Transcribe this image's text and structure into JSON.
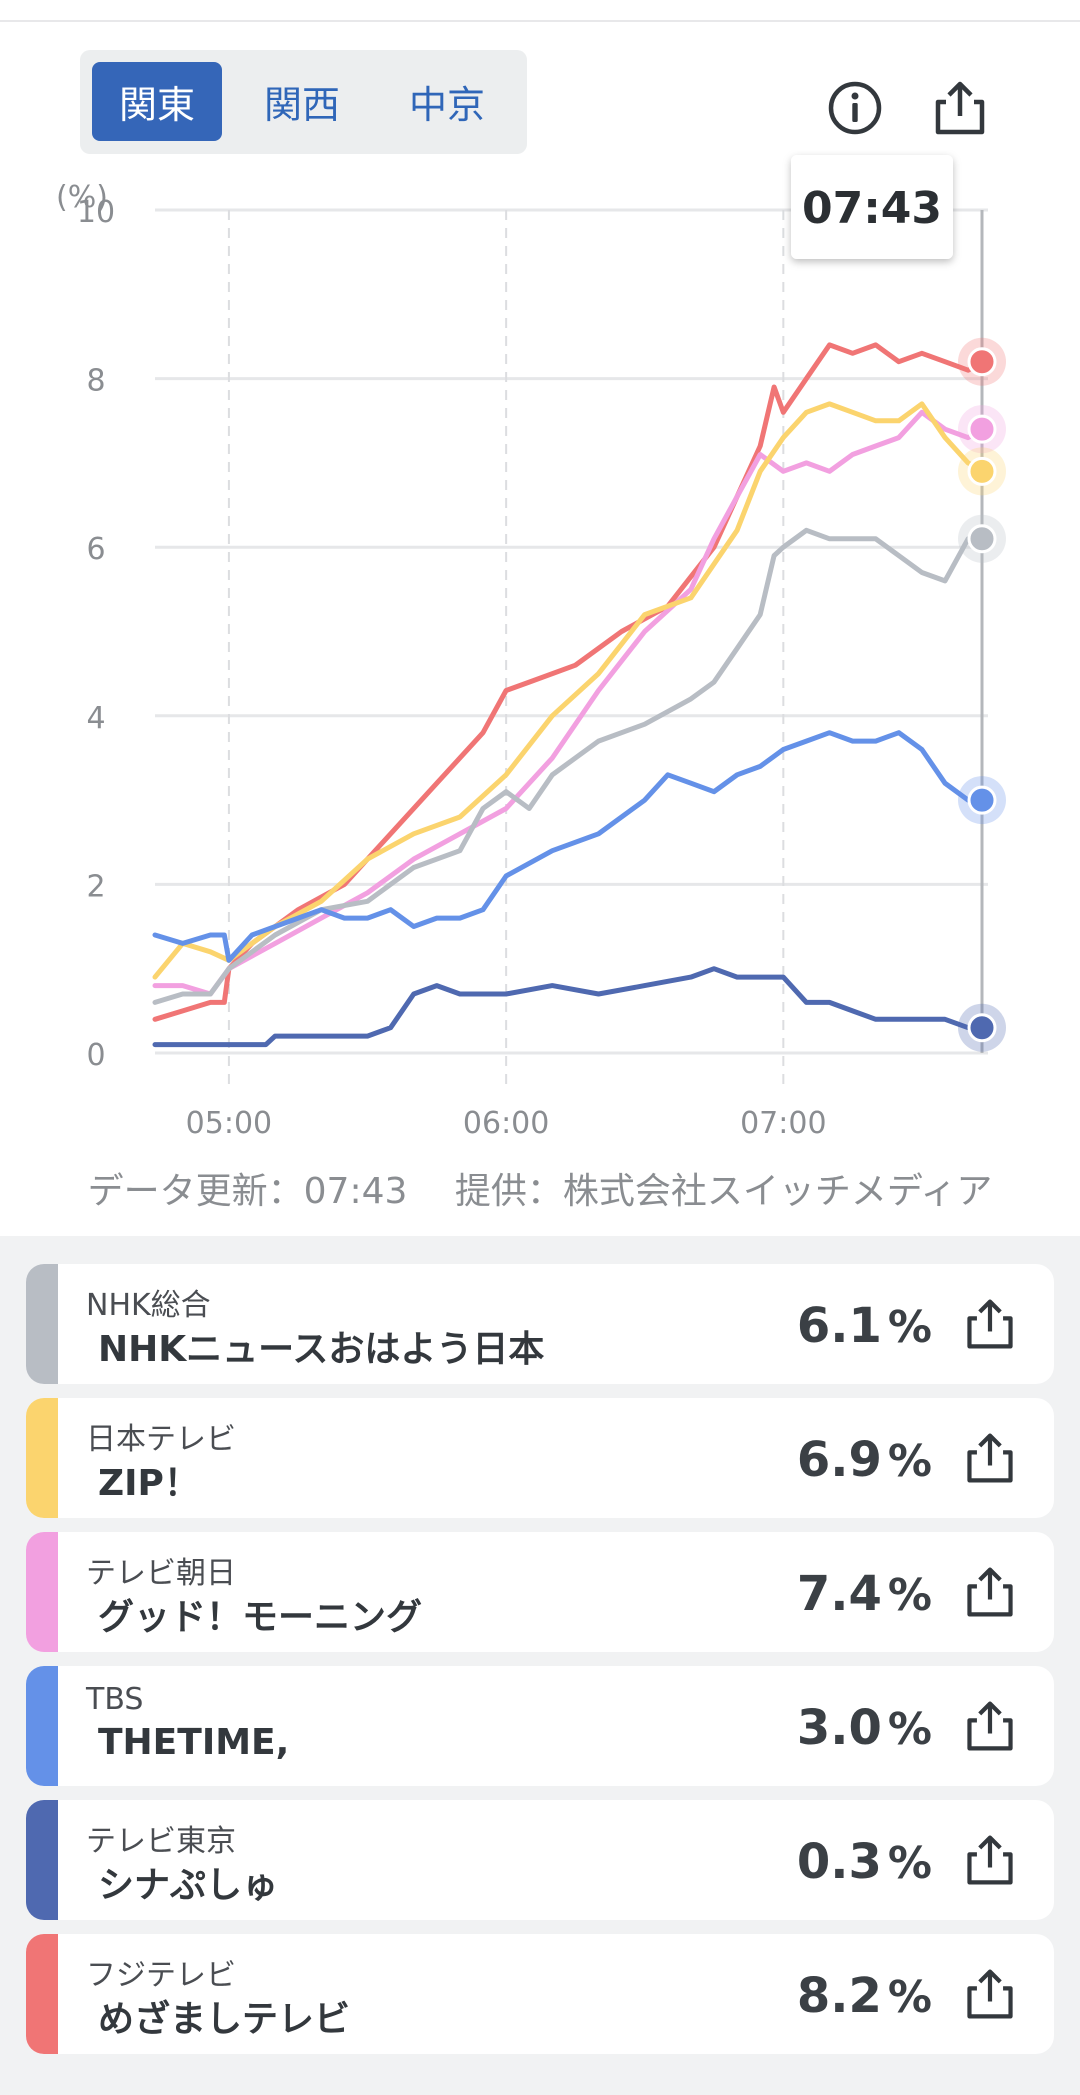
{
  "regions": [
    {
      "label": "関東",
      "active": true
    },
    {
      "label": "関西",
      "active": false
    },
    {
      "label": "中京",
      "active": false
    }
  ],
  "icons": {
    "info": "info-icon",
    "share": "share-icon"
  },
  "tooltip_time": "07:43",
  "footnote": "データ更新：07:43　 提供：株式会社スイッチメディア",
  "chart_data": {
    "type": "line",
    "ylabel": "(%)",
    "ylim": [
      0,
      10
    ],
    "yticks": [
      0,
      2,
      4,
      6,
      8,
      10
    ],
    "xticks": [
      "05:00",
      "06:00",
      "07:00"
    ],
    "xlim": [
      "04:44",
      "07:43"
    ],
    "grid": true,
    "series": [
      {
        "name": "フジテレビ",
        "color": "#f07575",
        "x": [
          "04:44",
          "04:50",
          "04:56",
          "04:59",
          "05:00",
          "05:05",
          "05:15",
          "05:25",
          "05:35",
          "05:45",
          "05:55",
          "06:00",
          "06:05",
          "06:15",
          "06:25",
          "06:35",
          "06:45",
          "06:50",
          "06:55",
          "06:58",
          "07:00",
          "07:05",
          "07:10",
          "07:15",
          "07:20",
          "07:25",
          "07:30",
          "07:35",
          "07:40",
          "07:43"
        ],
        "y": [
          0.4,
          0.5,
          0.6,
          0.6,
          1.0,
          1.3,
          1.7,
          2.0,
          2.6,
          3.2,
          3.8,
          4.3,
          4.4,
          4.6,
          5.0,
          5.3,
          6.0,
          6.6,
          7.2,
          7.9,
          7.6,
          8.0,
          8.4,
          8.3,
          8.4,
          8.2,
          8.3,
          8.2,
          8.1,
          8.2
        ]
      },
      {
        "name": "テレビ朝日",
        "color": "#f2a0e0",
        "x": [
          "04:44",
          "04:50",
          "04:56",
          "05:00",
          "05:10",
          "05:20",
          "05:30",
          "05:40",
          "05:50",
          "06:00",
          "06:10",
          "06:20",
          "06:30",
          "06:40",
          "06:45",
          "06:50",
          "06:55",
          "07:00",
          "07:05",
          "07:10",
          "07:15",
          "07:20",
          "07:25",
          "07:30",
          "07:35",
          "07:40",
          "07:43"
        ],
        "y": [
          0.8,
          0.8,
          0.7,
          1.0,
          1.3,
          1.6,
          1.9,
          2.3,
          2.6,
          2.9,
          3.5,
          4.3,
          5.0,
          5.5,
          6.1,
          6.6,
          7.1,
          6.9,
          7.0,
          6.9,
          7.1,
          7.2,
          7.3,
          7.6,
          7.4,
          7.3,
          7.4
        ]
      },
      {
        "name": "日本テレビ",
        "color": "#fbd46e",
        "x": [
          "04:44",
          "04:50",
          "04:56",
          "05:00",
          "05:10",
          "05:20",
          "05:30",
          "05:40",
          "05:50",
          "06:00",
          "06:10",
          "06:20",
          "06:30",
          "06:40",
          "06:45",
          "06:50",
          "06:55",
          "07:00",
          "07:05",
          "07:10",
          "07:15",
          "07:20",
          "07:25",
          "07:30",
          "07:35",
          "07:40",
          "07:43"
        ],
        "y": [
          0.9,
          1.3,
          1.2,
          1.1,
          1.5,
          1.8,
          2.3,
          2.6,
          2.8,
          3.3,
          4.0,
          4.5,
          5.2,
          5.4,
          5.8,
          6.2,
          6.9,
          7.3,
          7.6,
          7.7,
          7.6,
          7.5,
          7.5,
          7.7,
          7.3,
          7.0,
          6.9
        ]
      },
      {
        "name": "NHK総合",
        "color": "#b8bdc4",
        "x": [
          "04:44",
          "04:50",
          "04:56",
          "05:00",
          "05:10",
          "05:20",
          "05:30",
          "05:35",
          "05:40",
          "05:50",
          "05:55",
          "06:00",
          "06:05",
          "06:10",
          "06:20",
          "06:30",
          "06:40",
          "06:45",
          "06:50",
          "06:55",
          "06:58",
          "07:00",
          "07:05",
          "07:10",
          "07:15",
          "07:20",
          "07:25",
          "07:30",
          "07:35",
          "07:40",
          "07:43"
        ],
        "y": [
          0.6,
          0.7,
          0.7,
          1.0,
          1.4,
          1.7,
          1.8,
          2.0,
          2.2,
          2.4,
          2.9,
          3.1,
          2.9,
          3.3,
          3.7,
          3.9,
          4.2,
          4.4,
          4.8,
          5.2,
          5.9,
          6.0,
          6.2,
          6.1,
          6.1,
          6.1,
          5.9,
          5.7,
          5.6,
          6.1,
          6.1
        ]
      },
      {
        "name": "TBS",
        "color": "#6491e8",
        "x": [
          "04:44",
          "04:50",
          "04:56",
          "04:59",
          "05:00",
          "05:05",
          "05:15",
          "05:20",
          "05:25",
          "05:30",
          "05:35",
          "05:40",
          "05:45",
          "05:50",
          "05:55",
          "06:00",
          "06:10",
          "06:20",
          "06:30",
          "06:35",
          "06:40",
          "06:45",
          "06:50",
          "06:55",
          "07:00",
          "07:05",
          "07:10",
          "07:15",
          "07:20",
          "07:25",
          "07:30",
          "07:35",
          "07:40",
          "07:43"
        ],
        "y": [
          1.4,
          1.3,
          1.4,
          1.4,
          1.1,
          1.4,
          1.6,
          1.7,
          1.6,
          1.6,
          1.7,
          1.5,
          1.6,
          1.6,
          1.7,
          2.1,
          2.4,
          2.6,
          3.0,
          3.3,
          3.2,
          3.1,
          3.3,
          3.4,
          3.6,
          3.7,
          3.8,
          3.7,
          3.7,
          3.8,
          3.6,
          3.2,
          3.0,
          3.0
        ]
      },
      {
        "name": "テレビ東京",
        "color": "#4f69b0",
        "x": [
          "04:44",
          "04:50",
          "05:00",
          "05:08",
          "05:10",
          "05:30",
          "05:35",
          "05:40",
          "05:45",
          "05:50",
          "06:00",
          "06:10",
          "06:20",
          "06:30",
          "06:40",
          "06:45",
          "06:50",
          "06:55",
          "07:00",
          "07:05",
          "07:10",
          "07:15",
          "07:20",
          "07:25",
          "07:30",
          "07:35",
          "07:40",
          "07:43"
        ],
        "y": [
          0.1,
          0.1,
          0.1,
          0.1,
          0.2,
          0.2,
          0.3,
          0.7,
          0.8,
          0.7,
          0.7,
          0.8,
          0.7,
          0.8,
          0.9,
          1.0,
          0.9,
          0.9,
          0.9,
          0.6,
          0.6,
          0.5,
          0.4,
          0.4,
          0.4,
          0.4,
          0.3,
          0.3
        ]
      }
    ]
  },
  "programs": [
    {
      "channel": "NHK総合",
      "title": "NHKニュースおはよう日本",
      "value": "6.1",
      "unit": "%",
      "color": "#b8bdc4"
    },
    {
      "channel": "日本テレビ",
      "title": "ZIP！",
      "value": "6.9",
      "unit": "%",
      "color": "#fbd46e"
    },
    {
      "channel": "テレビ朝日",
      "title": "グッド！モーニング",
      "value": "7.4",
      "unit": "%",
      "color": "#f2a0e0"
    },
    {
      "channel": "TBS",
      "title": "THETIME,",
      "value": "3.0",
      "unit": "%",
      "color": "#6491e8"
    },
    {
      "channel": "テレビ東京",
      "title": "シナぷしゅ",
      "value": "0.3",
      "unit": "%",
      "color": "#4f69b0"
    },
    {
      "channel": "フジテレビ",
      "title": "めざましテレビ",
      "value": "8.2",
      "unit": "%",
      "color": "#f07575"
    }
  ]
}
